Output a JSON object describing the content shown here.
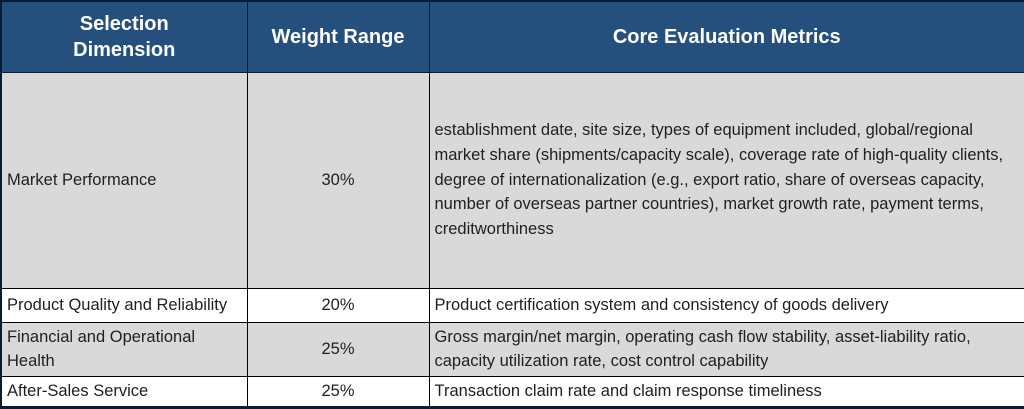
{
  "table": {
    "title_semantic": "supplier-selection-evaluation-table",
    "colors": {
      "header_bg": "#254f7d",
      "header_text": "#ffffff",
      "row_alt_bg": "#d9d9d9",
      "row_bg": "#ffffff",
      "border": "#000000",
      "body_text": "#1f1f1f"
    },
    "headers": [
      {
        "label": "Selection Dimension"
      },
      {
        "label": "Weight Range"
      },
      {
        "label": "Core Evaluation Metrics"
      }
    ],
    "rows": [
      {
        "dimension": "Market Performance",
        "weight": "30%",
        "metrics": "establishment date, site size, types of equipment included, global/regional market share (shipments/capacity scale), coverage rate of high-quality clients, degree of internationalization (e.g., export ratio, share of overseas capacity, number of overseas partner countries), market growth rate, payment terms, creditworthiness"
      },
      {
        "dimension": "Product Quality and Reliability",
        "weight": "20%",
        "metrics": "Product certification system and consistency of goods delivery"
      },
      {
        "dimension": "Financial and Operational Health",
        "weight": "25%",
        "metrics": "Gross margin/net margin, operating cash flow stability, asset-liability ratio, capacity utilization rate, cost control capability"
      },
      {
        "dimension": "After-Sales Service",
        "weight": "25%",
        "metrics": "Transaction claim rate and claim response timeliness"
      }
    ]
  }
}
